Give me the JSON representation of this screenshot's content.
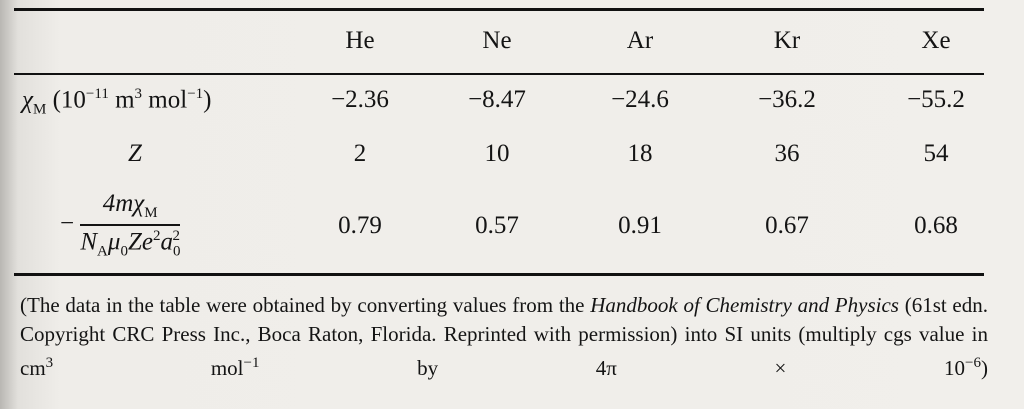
{
  "table": {
    "header": [
      "He",
      "Ne",
      "Ar",
      "Kr",
      "Xe"
    ],
    "rows": [
      {
        "label": [
          "χ",
          "M",
          " (10",
          "−11",
          " m",
          "3",
          " mol",
          "−1",
          ")"
        ],
        "values": [
          "−2.36",
          "−8.47",
          "−24.6",
          "−36.2",
          "−55.2"
        ]
      },
      {
        "label": [
          "Z"
        ],
        "values": [
          "2",
          "10",
          "18",
          "36",
          "54"
        ]
      },
      {
        "label": {
          "sign": "−",
          "numerator": [
            "4mχ",
            "M"
          ],
          "denominator": [
            "N",
            "A",
            "μ",
            "0",
            "Ze",
            "2",
            "a",
            "0",
            "2"
          ]
        },
        "values": [
          "0.79",
          "0.57",
          "0.91",
          "0.67",
          "0.68"
        ]
      }
    ]
  },
  "footnote": [
    "(The data in the table were obtained by converting values from the ",
    "Handbook of Chemistry and Physics",
    " (61st edn. Copyright CRC Press Inc., Boca Raton, Florida. Reprinted with permission) into SI units (multiply cgs value in cm",
    "3",
    " mol",
    "−1",
    " by 4π × 10",
    "−6",
    ")"
  ]
}
